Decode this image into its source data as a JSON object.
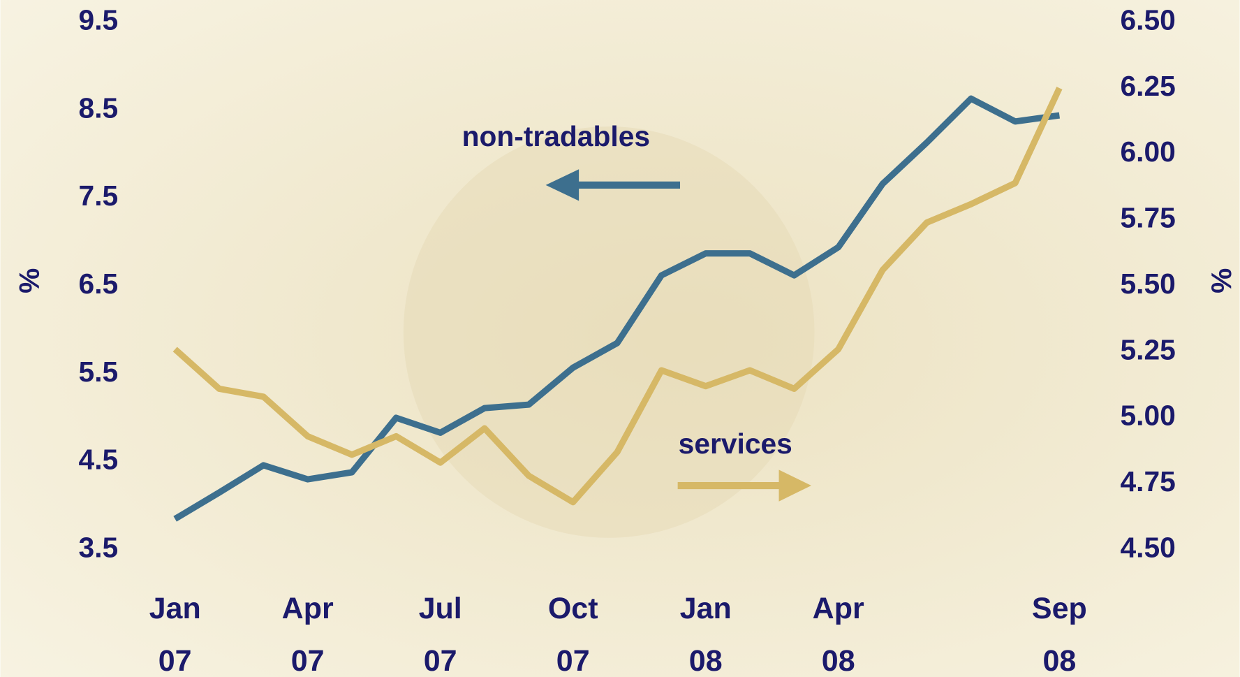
{
  "chart_data": {
    "type": "line",
    "categories": [
      "Jan\n07",
      null,
      null,
      "Apr\n07",
      null,
      null,
      "Jul\n07",
      null,
      null,
      "Oct\n07",
      null,
      null,
      "Jan\n08",
      null,
      null,
      "Apr\n08",
      null,
      null,
      null,
      null,
      "Sep\n08"
    ],
    "ylabel": "%",
    "y2label": "%",
    "ylim": [
      3.5,
      9.5
    ],
    "yticks": [
      3.5,
      4.5,
      5.5,
      6.5,
      7.5,
      8.5,
      9.5
    ],
    "y2lim": [
      4.5,
      6.5
    ],
    "y2ticks": [
      {
        "value": 4.5,
        "label": "4.50"
      },
      {
        "value": 4.75,
        "label": "4.75"
      },
      {
        "value": 5.0,
        "label": "5.00"
      },
      {
        "value": 5.25,
        "label": "5.25"
      },
      {
        "value": 5.5,
        "label": "5.50"
      },
      {
        "value": 5.75,
        "label": "5.75"
      },
      {
        "value": 6.0,
        "label": "6.00"
      },
      {
        "value": 6.25,
        "label": "6.25"
      },
      {
        "value": 6.5,
        "label": "6.50"
      }
    ],
    "series": [
      {
        "name": "non-tradables",
        "color": "#3d6f8e",
        "axis": "y",
        "values": [
          3.85,
          4.15,
          4.46,
          4.3,
          4.38,
          5.0,
          4.83,
          5.11,
          5.15,
          5.57,
          5.85,
          6.62,
          6.87,
          6.87,
          6.62,
          6.94,
          7.66,
          8.13,
          8.63,
          8.37,
          8.44
        ]
      },
      {
        "name": "services",
        "color": "#d6b866",
        "axis": "y2",
        "values": [
          5.26,
          5.11,
          5.08,
          4.93,
          4.86,
          4.93,
          4.83,
          4.96,
          4.78,
          4.68,
          4.87,
          5.18,
          5.12,
          5.18,
          5.11,
          5.26,
          5.56,
          5.74,
          5.81,
          5.89,
          6.25
        ]
      }
    ]
  }
}
